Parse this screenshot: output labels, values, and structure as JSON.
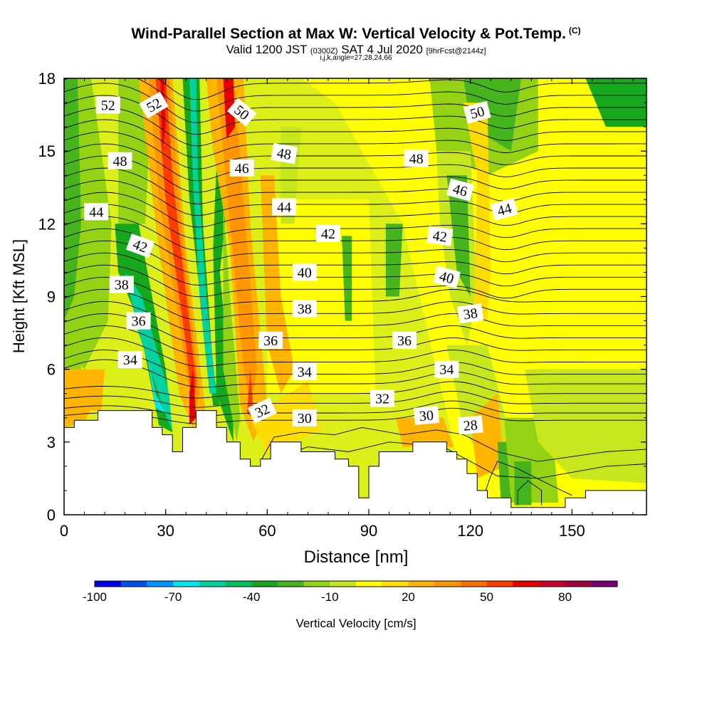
{
  "header": {
    "title": "Wind-Parallel Section at Max W: Vertical Velocity & Pot.Temp.",
    "copyright": "(C)",
    "subtitle_a": "Valid 1200 JST",
    "subtitle_b": "(0300Z)",
    "subtitle_c": "SAT 4 Jul 2020",
    "subtitle_d": "[9hrFcst@2144z]",
    "params": "i,j,k,angle=27,28,24,66"
  },
  "chart_data": {
    "type": "heatmap",
    "title": "Wind-Parallel Section at Max W: Vertical Velocity & Pot.Temp.",
    "xlabel": "Distance [nm]",
    "ylabel": "Height [Kft MSL]",
    "xlim": [
      0,
      172
    ],
    "ylim": [
      0,
      18
    ],
    "x_ticks": [
      "0",
      "30",
      "60",
      "90",
      "120",
      "150"
    ],
    "y_ticks": [
      "0",
      "3",
      "6",
      "9",
      "12",
      "15",
      "18"
    ],
    "x_tick_values": [
      0,
      30,
      60,
      90,
      120,
      150
    ],
    "y_tick_values": [
      0,
      3,
      6,
      9,
      12,
      15,
      18
    ],
    "colorbar": {
      "label": "Vertical Velocity [cm/s]",
      "tick_labels": [
        "-100",
        "-70",
        "-40",
        "-10",
        "20",
        "50",
        "80"
      ],
      "tick_values": [
        -100,
        -70,
        -40,
        -10,
        20,
        50,
        80
      ],
      "colors": [
        "#0000e6",
        "#0050f0",
        "#0096ff",
        "#00e6f0",
        "#00d2a0",
        "#00c060",
        "#16a81c",
        "#46b41c",
        "#96d214",
        "#c8e61e",
        "#ffff00",
        "#ffdc00",
        "#ffb400",
        "#ff9600",
        "#ff6e00",
        "#ff3c00",
        "#e60000",
        "#c80028",
        "#a0003c",
        "#780078"
      ]
    },
    "contour_series": "Potential temperature",
    "contour_labels": [
      {
        "text": "52",
        "x": 13,
        "y": 16.9,
        "angle": 0
      },
      {
        "text": "52",
        "x": 26.5,
        "y": 16.9,
        "angle": -30
      },
      {
        "text": "50",
        "x": 52.5,
        "y": 16.6,
        "angle": 40
      },
      {
        "text": "50",
        "x": 122,
        "y": 16.6,
        "angle": -15
      },
      {
        "text": "48",
        "x": 16.5,
        "y": 14.6,
        "angle": 0
      },
      {
        "text": "48",
        "x": 65,
        "y": 14.9,
        "angle": 10
      },
      {
        "text": "48",
        "x": 104,
        "y": 14.7,
        "angle": 0
      },
      {
        "text": "46",
        "x": 52.5,
        "y": 14.3,
        "angle": 0
      },
      {
        "text": "46",
        "x": 117,
        "y": 13.4,
        "angle": 15
      },
      {
        "text": "44",
        "x": 9.5,
        "y": 12.5,
        "angle": 0
      },
      {
        "text": "44",
        "x": 65,
        "y": 12.7,
        "angle": 0
      },
      {
        "text": "44",
        "x": 130,
        "y": 12.6,
        "angle": -15
      },
      {
        "text": "42",
        "x": 22.5,
        "y": 11.1,
        "angle": 20
      },
      {
        "text": "42",
        "x": 78,
        "y": 11.6,
        "angle": 0
      },
      {
        "text": "42",
        "x": 111,
        "y": 11.5,
        "angle": 8
      },
      {
        "text": "40",
        "x": 71,
        "y": 10.0,
        "angle": 0
      },
      {
        "text": "40",
        "x": 113,
        "y": 9.8,
        "angle": 15
      },
      {
        "text": "38",
        "x": 17,
        "y": 9.5,
        "angle": 0
      },
      {
        "text": "38",
        "x": 71,
        "y": 8.5,
        "angle": 0
      },
      {
        "text": "38",
        "x": 120,
        "y": 8.3,
        "angle": -8
      },
      {
        "text": "36",
        "x": 22,
        "y": 8.0,
        "angle": 0
      },
      {
        "text": "36",
        "x": 61,
        "y": 7.2,
        "angle": 0
      },
      {
        "text": "36",
        "x": 100.5,
        "y": 7.2,
        "angle": 0
      },
      {
        "text": "34",
        "x": 19.5,
        "y": 6.4,
        "angle": 0
      },
      {
        "text": "34",
        "x": 71,
        "y": 5.9,
        "angle": 0
      },
      {
        "text": "34",
        "x": 113,
        "y": 6.0,
        "angle": 0
      },
      {
        "text": "32",
        "x": 58.5,
        "y": 4.3,
        "angle": -25
      },
      {
        "text": "32",
        "x": 94,
        "y": 4.8,
        "angle": 0
      },
      {
        "text": "30",
        "x": 71,
        "y": 4.0,
        "angle": 0
      },
      {
        "text": "30",
        "x": 107,
        "y": 4.1,
        "angle": -5
      },
      {
        "text": "28",
        "x": 120,
        "y": 3.7,
        "angle": -5
      }
    ],
    "terrain": [
      [
        0,
        3.6
      ],
      [
        3,
        3.6
      ],
      [
        3,
        3.9
      ],
      [
        10,
        3.9
      ],
      [
        10,
        4.3
      ],
      [
        26,
        4.3
      ],
      [
        26,
        3.6
      ],
      [
        29,
        3.6
      ],
      [
        29,
        3.3
      ],
      [
        32,
        3.3
      ],
      [
        32,
        2.6
      ],
      [
        35,
        2.6
      ],
      [
        35,
        3.6
      ],
      [
        39,
        3.6
      ],
      [
        39,
        4.3
      ],
      [
        45,
        4.3
      ],
      [
        45,
        3.6
      ],
      [
        48,
        3.6
      ],
      [
        48,
        3.0
      ],
      [
        52,
        3.0
      ],
      [
        52,
        2.3
      ],
      [
        55,
        2.3
      ],
      [
        55,
        2.0
      ],
      [
        58,
        2.0
      ],
      [
        58,
        2.3
      ],
      [
        61,
        2.3
      ],
      [
        61,
        3.0
      ],
      [
        70,
        3.0
      ],
      [
        70,
        2.6
      ],
      [
        80,
        2.6
      ],
      [
        80,
        2.3
      ],
      [
        84,
        2.3
      ],
      [
        84,
        2.0
      ],
      [
        87,
        2.0
      ],
      [
        87,
        0.7
      ],
      [
        90,
        0.7
      ],
      [
        90,
        2.0
      ],
      [
        93,
        2.0
      ],
      [
        93,
        2.6
      ],
      [
        103,
        2.6
      ],
      [
        103,
        3.0
      ],
      [
        113,
        3.0
      ],
      [
        113,
        2.6
      ],
      [
        116,
        2.6
      ],
      [
        116,
        2.3
      ],
      [
        119,
        2.3
      ],
      [
        119,
        1.7
      ],
      [
        122,
        1.7
      ],
      [
        122,
        1.0
      ],
      [
        125,
        1.0
      ],
      [
        125,
        0.7
      ],
      [
        132,
        0.7
      ],
      [
        132,
        0.3
      ],
      [
        148,
        0.3
      ],
      [
        148,
        0.7
      ],
      [
        154,
        0.7
      ],
      [
        154,
        1.0
      ],
      [
        172,
        1.0
      ]
    ]
  }
}
